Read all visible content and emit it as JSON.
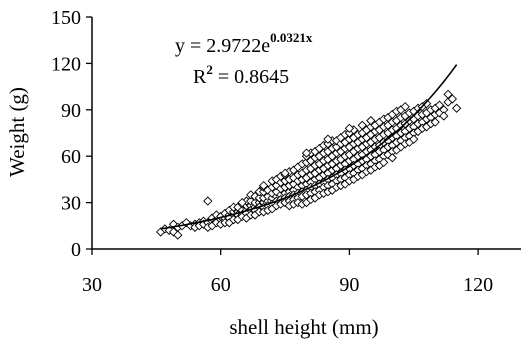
{
  "chart_data": {
    "type": "scatter",
    "title": "",
    "xlabel": "shell height (mm)",
    "ylabel": "Weight (g)",
    "xlim": [
      30,
      130
    ],
    "ylim": [
      0,
      150
    ],
    "x_ticks": [
      "30",
      "60",
      "90",
      "120"
    ],
    "y_ticks": [
      "0",
      "30",
      "60",
      "90",
      "120",
      "150"
    ],
    "grid": false,
    "marker": "diamond-open",
    "trendline": {
      "type": "exponential",
      "a": 2.9722,
      "b": 0.0321,
      "x_range": [
        46,
        115
      ],
      "equation_prefix": "y = 2.9722e",
      "equation_exponent": "0.0321x",
      "r2_prefix": "R",
      "r2_exponent": "2",
      "r2_suffix": " = 0.8645"
    },
    "points": [
      [
        46,
        11
      ],
      [
        47,
        13
      ],
      [
        48,
        12
      ],
      [
        49,
        16
      ],
      [
        49,
        11
      ],
      [
        50,
        14
      ],
      [
        50,
        9
      ],
      [
        51,
        15
      ],
      [
        52,
        17
      ],
      [
        53,
        15
      ],
      [
        54,
        16
      ],
      [
        54,
        14
      ],
      [
        55,
        17
      ],
      [
        55,
        15
      ],
      [
        56,
        18
      ],
      [
        56,
        16
      ],
      [
        57,
        17
      ],
      [
        57,
        14
      ],
      [
        57,
        31
      ],
      [
        58,
        18
      ],
      [
        58,
        20
      ],
      [
        58,
        15
      ],
      [
        59,
        19
      ],
      [
        59,
        17
      ],
      [
        59,
        22
      ],
      [
        60,
        19
      ],
      [
        60,
        21
      ],
      [
        60,
        16
      ],
      [
        61,
        20
      ],
      [
        61,
        23
      ],
      [
        61,
        17
      ],
      [
        62,
        22
      ],
      [
        62,
        20
      ],
      [
        62,
        25
      ],
      [
        62,
        17
      ],
      [
        63,
        22
      ],
      [
        63,
        24
      ],
      [
        63,
        19
      ],
      [
        63,
        27
      ],
      [
        64,
        24
      ],
      [
        64,
        22
      ],
      [
        64,
        27
      ],
      [
        64,
        19
      ],
      [
        65,
        25
      ],
      [
        65,
        22
      ],
      [
        65,
        29
      ],
      [
        65,
        21
      ],
      [
        66,
        25
      ],
      [
        66,
        28
      ],
      [
        66,
        23
      ],
      [
        66,
        31
      ],
      [
        66,
        20
      ],
      [
        67,
        28
      ],
      [
        67,
        25
      ],
      [
        67,
        31
      ],
      [
        67,
        22
      ],
      [
        67,
        35
      ],
      [
        68,
        27
      ],
      [
        68,
        30
      ],
      [
        68,
        25
      ],
      [
        68,
        34
      ],
      [
        68,
        22
      ],
      [
        69,
        30
      ],
      [
        69,
        27
      ],
      [
        69,
        33
      ],
      [
        69,
        24
      ],
      [
        69,
        37
      ],
      [
        70,
        30
      ],
      [
        70,
        33
      ],
      [
        70,
        27
      ],
      [
        70,
        37
      ],
      [
        70,
        24
      ],
      [
        70,
        40
      ],
      [
        71,
        31
      ],
      [
        71,
        34
      ],
      [
        71,
        28
      ],
      [
        71,
        38
      ],
      [
        71,
        25
      ],
      [
        72,
        33
      ],
      [
        72,
        36
      ],
      [
        72,
        29
      ],
      [
        72,
        40
      ],
      [
        72,
        26
      ],
      [
        72,
        44
      ],
      [
        73,
        34
      ],
      [
        73,
        37
      ],
      [
        73,
        31
      ],
      [
        73,
        41
      ],
      [
        73,
        28
      ],
      [
        73,
        45
      ],
      [
        74,
        35
      ],
      [
        74,
        39
      ],
      [
        74,
        32
      ],
      [
        74,
        43
      ],
      [
        74,
        29
      ],
      [
        74,
        47
      ],
      [
        75,
        36
      ],
      [
        75,
        40
      ],
      [
        75,
        33
      ],
      [
        75,
        44
      ],
      [
        75,
        30
      ],
      [
        75,
        48
      ],
      [
        76,
        37
      ],
      [
        76,
        41
      ],
      [
        76,
        34
      ],
      [
        76,
        45
      ],
      [
        76,
        31
      ],
      [
        76,
        50
      ],
      [
        76,
        28
      ],
      [
        77,
        38
      ],
      [
        77,
        42
      ],
      [
        77,
        35
      ],
      [
        77,
        46
      ],
      [
        77,
        32
      ],
      [
        77,
        51
      ],
      [
        77,
        29
      ],
      [
        78,
        40
      ],
      [
        78,
        44
      ],
      [
        78,
        36
      ],
      [
        78,
        48
      ],
      [
        78,
        33
      ],
      [
        78,
        53
      ],
      [
        78,
        30
      ],
      [
        79,
        41
      ],
      [
        79,
        45
      ],
      [
        79,
        37
      ],
      [
        79,
        49
      ],
      [
        79,
        34
      ],
      [
        79,
        55
      ],
      [
        79,
        29
      ],
      [
        80,
        42
      ],
      [
        80,
        46
      ],
      [
        80,
        38
      ],
      [
        80,
        51
      ],
      [
        80,
        35
      ],
      [
        80,
        56
      ],
      [
        80,
        30
      ],
      [
        80,
        60
      ],
      [
        81,
        43
      ],
      [
        81,
        48
      ],
      [
        81,
        40
      ],
      [
        81,
        52
      ],
      [
        81,
        36
      ],
      [
        81,
        57
      ],
      [
        81,
        32
      ],
      [
        81,
        62
      ],
      [
        82,
        45
      ],
      [
        82,
        49
      ],
      [
        82,
        41
      ],
      [
        82,
        54
      ],
      [
        82,
        37
      ],
      [
        82,
        59
      ],
      [
        82,
        33
      ],
      [
        82,
        63
      ],
      [
        83,
        46
      ],
      [
        83,
        51
      ],
      [
        83,
        42
      ],
      [
        83,
        55
      ],
      [
        83,
        38
      ],
      [
        83,
        60
      ],
      [
        83,
        35
      ],
      [
        83,
        65
      ],
      [
        84,
        48
      ],
      [
        84,
        52
      ],
      [
        84,
        43
      ],
      [
        84,
        57
      ],
      [
        84,
        40
      ],
      [
        84,
        62
      ],
      [
        84,
        36
      ],
      [
        84,
        67
      ],
      [
        85,
        49
      ],
      [
        85,
        54
      ],
      [
        85,
        45
      ],
      [
        85,
        58
      ],
      [
        85,
        41
      ],
      [
        85,
        63
      ],
      [
        85,
        37
      ],
      [
        85,
        68
      ],
      [
        86,
        51
      ],
      [
        86,
        55
      ],
      [
        86,
        46
      ],
      [
        86,
        60
      ],
      [
        86,
        42
      ],
      [
        86,
        65
      ],
      [
        86,
        38
      ],
      [
        86,
        70
      ],
      [
        87,
        52
      ],
      [
        87,
        57
      ],
      [
        87,
        48
      ],
      [
        87,
        62
      ],
      [
        87,
        44
      ],
      [
        87,
        66
      ],
      [
        87,
        40
      ],
      [
        87,
        70
      ],
      [
        88,
        54
      ],
      [
        88,
        58
      ],
      [
        88,
        49
      ],
      [
        88,
        63
      ],
      [
        88,
        45
      ],
      [
        88,
        68
      ],
      [
        88,
        41
      ],
      [
        88,
        72
      ],
      [
        89,
        55
      ],
      [
        89,
        60
      ],
      [
        89,
        51
      ],
      [
        89,
        65
      ],
      [
        89,
        46
      ],
      [
        89,
        69
      ],
      [
        89,
        42
      ],
      [
        89,
        74
      ],
      [
        90,
        57
      ],
      [
        90,
        61
      ],
      [
        90,
        52
      ],
      [
        90,
        66
      ],
      [
        90,
        48
      ],
      [
        90,
        71
      ],
      [
        90,
        44
      ],
      [
        90,
        75
      ],
      [
        91,
        58
      ],
      [
        91,
        63
      ],
      [
        91,
        54
      ],
      [
        91,
        68
      ],
      [
        91,
        49
      ],
      [
        91,
        72
      ],
      [
        91,
        45
      ],
      [
        91,
        77
      ],
      [
        92,
        60
      ],
      [
        92,
        65
      ],
      [
        92,
        55
      ],
      [
        92,
        69
      ],
      [
        92,
        51
      ],
      [
        92,
        74
      ],
      [
        92,
        47
      ],
      [
        93,
        61
      ],
      [
        93,
        66
      ],
      [
        93,
        57
      ],
      [
        93,
        71
      ],
      [
        93,
        52
      ],
      [
        93,
        75
      ],
      [
        93,
        48
      ],
      [
        93,
        80
      ],
      [
        94,
        63
      ],
      [
        94,
        68
      ],
      [
        94,
        58
      ],
      [
        94,
        72
      ],
      [
        94,
        54
      ],
      [
        94,
        77
      ],
      [
        94,
        50
      ],
      [
        95,
        64
      ],
      [
        95,
        69
      ],
      [
        95,
        60
      ],
      [
        95,
        74
      ],
      [
        95,
        55
      ],
      [
        95,
        79
      ],
      [
        95,
        51
      ],
      [
        96,
        66
      ],
      [
        96,
        71
      ],
      [
        96,
        61
      ],
      [
        96,
        76
      ],
      [
        96,
        57
      ],
      [
        96,
        80
      ],
      [
        96,
        53
      ],
      [
        97,
        67
      ],
      [
        97,
        72
      ],
      [
        97,
        63
      ],
      [
        97,
        77
      ],
      [
        97,
        58
      ],
      [
        97,
        82
      ],
      [
        97,
        54
      ],
      [
        98,
        69
      ],
      [
        98,
        74
      ],
      [
        98,
        64
      ],
      [
        98,
        79
      ],
      [
        98,
        60
      ],
      [
        98,
        84
      ],
      [
        98,
        56
      ],
      [
        99,
        70
      ],
      [
        99,
        75
      ],
      [
        99,
        66
      ],
      [
        99,
        80
      ],
      [
        99,
        61
      ],
      [
        99,
        85
      ],
      [
        100,
        72
      ],
      [
        100,
        77
      ],
      [
        100,
        67
      ],
      [
        100,
        82
      ],
      [
        100,
        63
      ],
      [
        100,
        87
      ],
      [
        100,
        59
      ],
      [
        101,
        73
      ],
      [
        101,
        78
      ],
      [
        101,
        69
      ],
      [
        101,
        83
      ],
      [
        101,
        64
      ],
      [
        101,
        89
      ],
      [
        102,
        75
      ],
      [
        102,
        80
      ],
      [
        102,
        70
      ],
      [
        102,
        85
      ],
      [
        102,
        66
      ],
      [
        102,
        90
      ],
      [
        103,
        76
      ],
      [
        103,
        81
      ],
      [
        103,
        72
      ],
      [
        103,
        86
      ],
      [
        103,
        68
      ],
      [
        103,
        92
      ],
      [
        104,
        78
      ],
      [
        104,
        83
      ],
      [
        104,
        73
      ],
      [
        104,
        88
      ],
      [
        104,
        69
      ],
      [
        105,
        79
      ],
      [
        105,
        84
      ],
      [
        105,
        75
      ],
      [
        105,
        89
      ],
      [
        105,
        71
      ],
      [
        106,
        81
      ],
      [
        106,
        86
      ],
      [
        106,
        76
      ],
      [
        106,
        91
      ],
      [
        107,
        82
      ],
      [
        107,
        87
      ],
      [
        107,
        78
      ],
      [
        107,
        92
      ],
      [
        108,
        84
      ],
      [
        108,
        88
      ],
      [
        108,
        79
      ],
      [
        108,
        94
      ],
      [
        109,
        85
      ],
      [
        109,
        90
      ],
      [
        109,
        81
      ],
      [
        110,
        87
      ],
      [
        110,
        91
      ],
      [
        110,
        82
      ],
      [
        111,
        88
      ],
      [
        111,
        93
      ],
      [
        112,
        90
      ],
      [
        112,
        86
      ],
      [
        113,
        95
      ],
      [
        113,
        100
      ],
      [
        114,
        97
      ],
      [
        115,
        91
      ],
      [
        65,
        30
      ],
      [
        70,
        41
      ],
      [
        75,
        49
      ],
      [
        80,
        62
      ],
      [
        85,
        71
      ],
      [
        90,
        78
      ],
      [
        95,
        83
      ]
    ]
  }
}
